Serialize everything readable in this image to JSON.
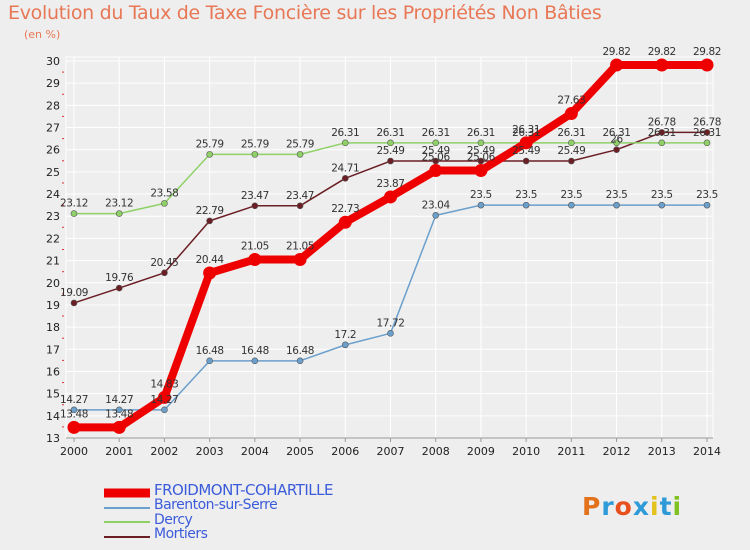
{
  "title": "Evolution du Taux de Taxe Foncière sur les Propriétés Non Bâties",
  "subtitle": "(en %)",
  "brand": {
    "text": "Proxiti",
    "letter_colors": [
      "#e2721b",
      "#2e9bd8",
      "#e8501d",
      "#2e9bd8",
      "#e2c21b",
      "#2e9bd8",
      "#7fc11f"
    ]
  },
  "chart_data": {
    "type": "line",
    "x": [
      "2000",
      "2001",
      "2002",
      "2003",
      "2004",
      "2005",
      "2006",
      "2007",
      "2008",
      "2009",
      "2010",
      "2011",
      "2012",
      "2013",
      "2014"
    ],
    "ylim": [
      13,
      30
    ],
    "yticks": [
      13,
      14,
      15,
      16,
      17,
      18,
      19,
      20,
      21,
      22,
      23,
      24,
      25,
      26,
      27,
      28,
      29,
      30
    ],
    "grid": true,
    "legend_position": "bottom-left",
    "series": [
      {
        "name": "Mortiers",
        "color": "#6b1f24",
        "width": 1.5,
        "values": [
          19.09,
          19.76,
          20.45,
          22.79,
          23.47,
          23.47,
          24.71,
          25.49,
          25.49,
          25.49,
          25.49,
          25.49,
          26.0,
          26.78,
          26.78
        ],
        "labels": [
          "19.09",
          "19.76",
          "20.45",
          "22.79",
          "23.47",
          "23.47",
          "24.71",
          "25.49",
          "25.49",
          "25.49",
          "25.49",
          "25.49",
          "26",
          "26.78",
          "26.78"
        ]
      },
      {
        "name": "Dercy",
        "color": "#8fd167",
        "width": 1.5,
        "values": [
          23.12,
          23.12,
          23.58,
          25.79,
          25.79,
          25.79,
          26.31,
          26.31,
          26.31,
          26.31,
          26.31,
          26.31,
          26.31,
          26.31,
          26.31
        ],
        "labels": [
          "23.12",
          "23.12",
          "23.58",
          "25.79",
          "25.79",
          "25.79",
          "26.31",
          "26.31",
          "26.31",
          "26.31",
          "26.31",
          "26.31",
          "26.31",
          "26.31",
          "26.31"
        ]
      },
      {
        "name": "Barenton-sur-Serre",
        "color": "#6b9fcc",
        "width": 1.5,
        "values": [
          14.27,
          14.27,
          14.27,
          16.48,
          16.48,
          16.48,
          17.2,
          17.72,
          23.04,
          23.5,
          23.5,
          23.5,
          23.5,
          23.5,
          23.5
        ],
        "labels": [
          "14.27",
          "14.27",
          "14.27",
          "16.48",
          "16.48",
          "16.48",
          "17.2",
          "17.72",
          "23.04",
          "23.5",
          "23.5",
          "23.5",
          "23.5",
          "23.5",
          "23.5"
        ]
      },
      {
        "name": "FROIDMONT-COHARTILLE",
        "color": "#ee0000",
        "width": 8,
        "values": [
          13.48,
          13.48,
          14.83,
          20.44,
          21.05,
          21.05,
          22.73,
          23.87,
          25.06,
          25.06,
          26.31,
          27.63,
          29.82,
          29.82,
          29.82
        ],
        "labels": [
          "13.48",
          "13.48",
          "14.83",
          "20.44",
          "21.05",
          "21.05",
          "22.73",
          "23.87",
          "25.06",
          "25.06",
          "26.31",
          "27.63",
          "29.82",
          "29.82",
          "29.82"
        ]
      }
    ],
    "legend": [
      {
        "name": "FROIDMONT-COHARTILLE",
        "color": "#ee0000"
      },
      {
        "name": "Barenton-sur-Serre",
        "color": "#6b9fcc"
      },
      {
        "name": "Dercy",
        "color": "#8fd167"
      },
      {
        "name": "Mortiers",
        "color": "#6b1f24"
      }
    ]
  }
}
